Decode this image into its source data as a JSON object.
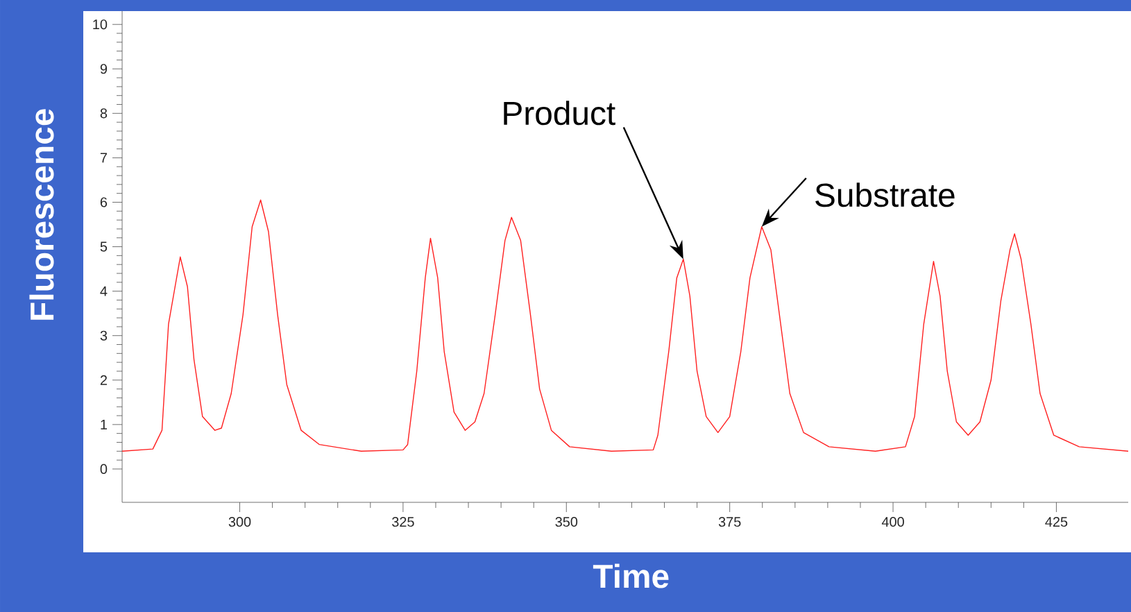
{
  "chart_data": {
    "type": "line",
    "xlabel": "Time",
    "ylabel": "Fluorescence",
    "xlim": [
      282,
      436
    ],
    "ylim": [
      -0.75,
      10.3
    ],
    "xticks": [
      300,
      325,
      350,
      375,
      400,
      425
    ],
    "yticks": [
      0,
      1,
      2,
      3,
      4,
      5,
      6,
      7,
      8,
      9,
      10
    ],
    "series": [
      {
        "color": "#ff2020",
        "x": [
          282,
          286.7,
          288.1,
          289.1,
          290.9,
          292,
          293.0,
          294.3,
          296.2,
          297.2,
          298.7,
          300.5,
          301.9,
          303.2,
          304.4,
          305.8,
          307.2,
          309.4,
          312.2,
          318.6,
          325,
          325.7,
          327.1,
          328.4,
          329.2,
          330.3,
          331.3,
          332.8,
          334.5,
          336.0,
          337.4,
          339.1,
          340.6,
          341.6,
          343.0,
          344.5,
          345.9,
          347.7,
          350.5,
          356.9,
          363.3,
          364.0,
          365.7,
          366.9,
          367.9,
          368.9,
          370.0,
          371.4,
          373.2,
          375,
          376.7,
          378.1,
          379.9,
          381.3,
          382.8,
          384.2,
          386.3,
          390.2,
          397.3,
          401.9,
          403.3,
          404.7,
          406.2,
          407.2,
          408.3,
          409.7,
          411.5,
          413.3,
          415.0,
          416.5,
          417.9,
          418.6,
          419.6,
          421.1,
          422.5,
          424.6,
          428.5,
          436
        ],
        "values": [
          0.4,
          0.45,
          0.87,
          3.26,
          4.77,
          4.1,
          2.46,
          1.18,
          0.87,
          0.92,
          1.7,
          3.47,
          5.45,
          6.05,
          5.34,
          3.47,
          1.9,
          0.87,
          0.55,
          0.4,
          0.43,
          0.55,
          2.2,
          4.3,
          5.19,
          4.3,
          2.64,
          1.28,
          0.87,
          1.06,
          1.7,
          3.47,
          5.14,
          5.66,
          5.14,
          3.47,
          1.8,
          0.87,
          0.5,
          0.4,
          0.43,
          0.76,
          2.68,
          4.3,
          4.72,
          3.89,
          2.2,
          1.18,
          0.82,
          1.18,
          2.64,
          4.3,
          5.45,
          4.93,
          3.26,
          1.7,
          0.82,
          0.5,
          0.4,
          0.5,
          1.18,
          3.26,
          4.67,
          3.89,
          2.2,
          1.06,
          0.76,
          1.06,
          2.0,
          3.78,
          4.93,
          5.29,
          4.72,
          3.26,
          1.7,
          0.76,
          0.5,
          0.4
        ]
      }
    ],
    "annotations": [
      {
        "text": "Product",
        "x": 367.9,
        "y": 4.72
      },
      {
        "text": "Substrate",
        "x": 379.9,
        "y": 5.45
      }
    ]
  }
}
